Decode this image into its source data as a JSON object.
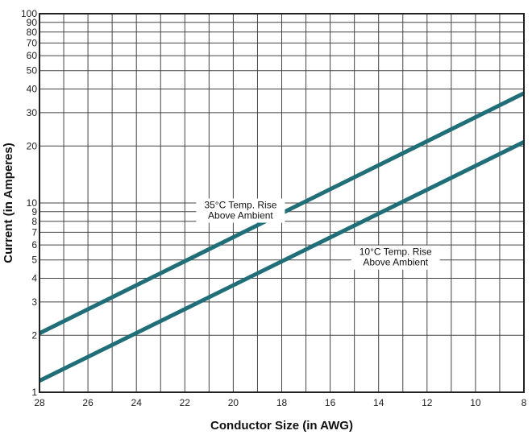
{
  "chart_data": {
    "type": "line",
    "xlabel": "Conductor Size (in AWG)",
    "ylabel": "Current (in Amperes)",
    "xlim": [
      28,
      8
    ],
    "x_reversed": true,
    "ylim": [
      1,
      100
    ],
    "y_scale": "log",
    "grid": true,
    "x_ticks": [
      "28",
      "26",
      "24",
      "22",
      "20",
      "18",
      "16",
      "14",
      "12",
      "10",
      "8"
    ],
    "y_ticks": [
      "1",
      "2",
      "3",
      "4",
      "5",
      "6",
      "7",
      "8",
      "9",
      "10",
      "20",
      "30",
      "40",
      "50",
      "60",
      "70",
      "80",
      "90",
      "100"
    ],
    "series": [
      {
        "name": "",
        "color": "#1f6e78",
        "x": [
          28,
          8
        ],
        "y": [
          2.05,
          38
        ]
      },
      {
        "name": "",
        "color": "#1f6e78",
        "x": [
          28,
          8
        ],
        "y": [
          1.15,
          21
        ]
      }
    ],
    "annotations": [
      {
        "lines": [
          "35°C Temp. Rise",
          "Above Ambient"
        ],
        "x": 19.7,
        "y": 9.2
      },
      {
        "lines": [
          "10°C Temp. Rise",
          "Above Ambient"
        ],
        "x": 13.3,
        "y": 5.2
      }
    ]
  }
}
